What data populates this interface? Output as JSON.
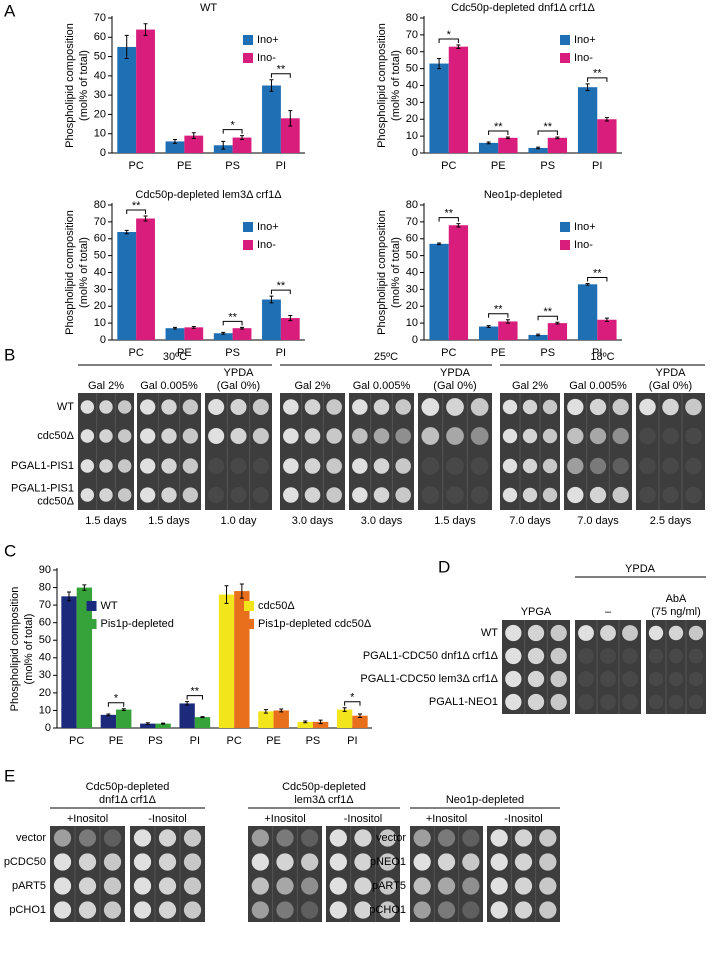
{
  "figure": {
    "panel_labels": [
      "A",
      "B",
      "C",
      "D",
      "E"
    ]
  },
  "chart_data": [
    {
      "type": "bar",
      "title": "WT",
      "ylabel": [
        "Phospholipid composition",
        "(mol% of total)"
      ],
      "categories": [
        "PC",
        "PE",
        "PS",
        "PI"
      ],
      "series": [
        {
          "name": "Ino+",
          "color": "#1f6fb4",
          "values": [
            55,
            6,
            4,
            35
          ],
          "errors": [
            6,
            1,
            2,
            3
          ]
        },
        {
          "name": "Ino-",
          "color": "#d81d7c",
          "values": [
            64,
            9,
            8,
            18
          ],
          "errors": [
            3,
            1.5,
            1,
            4
          ]
        }
      ],
      "significance": [
        null,
        null,
        "*",
        "**"
      ],
      "ylim": [
        0,
        70
      ],
      "yticks": [
        0,
        10,
        20,
        30,
        40,
        50,
        60,
        70
      ],
      "legend": "upper right"
    },
    {
      "type": "bar",
      "title": "Cdc50p-depleted dnf1Δ crf1Δ",
      "ylabel": [
        "Phospholipid composition",
        "(mol% of total)"
      ],
      "categories": [
        "PC",
        "PE",
        "PS",
        "PI"
      ],
      "series": [
        {
          "name": "Ino+",
          "color": "#1f6fb4",
          "values": [
            53,
            6,
            3,
            39
          ],
          "errors": [
            3,
            0.5,
            0.5,
            2
          ]
        },
        {
          "name": "Ino-",
          "color": "#d81d7c",
          "values": [
            63,
            9,
            9,
            20
          ],
          "errors": [
            1,
            0.5,
            0.5,
            1
          ]
        }
      ],
      "significance": [
        "*",
        "**",
        "**",
        "**"
      ],
      "ylim": [
        0,
        80
      ],
      "yticks": [
        0,
        10,
        20,
        30,
        40,
        50,
        60,
        70,
        80
      ],
      "legend": "upper right"
    },
    {
      "type": "bar",
      "title": "Cdc50p-depleted lem3Δ crf1Δ",
      "ylabel": [
        "Phospholipid composition",
        "(mol% of total)"
      ],
      "categories": [
        "PC",
        "PE",
        "PS",
        "PI"
      ],
      "series": [
        {
          "name": "Ino+",
          "color": "#1f6fb4",
          "values": [
            64,
            7,
            4,
            24
          ],
          "errors": [
            1,
            0.5,
            0.5,
            2
          ]
        },
        {
          "name": "Ino-",
          "color": "#d81d7c",
          "values": [
            72,
            7.5,
            7,
            13
          ],
          "errors": [
            1.5,
            0.5,
            0.5,
            1.5
          ]
        }
      ],
      "significance": [
        "**",
        null,
        "**",
        "**"
      ],
      "ylim": [
        0,
        80
      ],
      "yticks": [
        0,
        10,
        20,
        30,
        40,
        50,
        60,
        70,
        80
      ],
      "legend": "upper right"
    },
    {
      "type": "bar",
      "title": "Neo1p-depleted",
      "ylabel": [
        "Phospholipid composition",
        "(mol% of total)"
      ],
      "categories": [
        "PC",
        "PE",
        "PS",
        "PI"
      ],
      "series": [
        {
          "name": "Ino+",
          "color": "#1f6fb4",
          "values": [
            57,
            8,
            3,
            33
          ],
          "errors": [
            0.5,
            0.5,
            0.5,
            0.5
          ]
        },
        {
          "name": "Ino-",
          "color": "#d81d7c",
          "values": [
            68,
            11,
            10,
            12
          ],
          "errors": [
            1,
            1,
            0.5,
            1
          ]
        }
      ],
      "significance": [
        "**",
        "**",
        "**",
        "**"
      ],
      "ylim": [
        0,
        80
      ],
      "yticks": [
        0,
        10,
        20,
        30,
        40,
        50,
        60,
        70,
        80
      ],
      "legend": "upper right"
    },
    {
      "type": "bar",
      "ylabel": [
        "Phospholipid composition",
        "(mol% of total)"
      ],
      "categories": [
        "PC",
        "PE",
        "PS",
        "PI",
        "PC",
        "PE",
        "PS",
        "PI"
      ],
      "series": [
        {
          "name": "WT",
          "color": "#1c2a7c",
          "values": [
            75,
            7.5,
            2.5,
            14,
            null,
            null,
            null,
            null
          ],
          "errors": [
            2.5,
            0.5,
            0.5,
            1,
            null,
            null,
            null,
            null
          ]
        },
        {
          "name": "Pis1p-depleted",
          "color": "#35a33a",
          "values": [
            80,
            10.5,
            2.5,
            6.2,
            null,
            null,
            null,
            null
          ],
          "errors": [
            1.5,
            0.5,
            0.3,
            0.3,
            null,
            null,
            null,
            null
          ]
        },
        {
          "name": "cdc50Δ",
          "color": "#f2e51c",
          "values": [
            null,
            null,
            null,
            null,
            76,
            9.5,
            3.5,
            10.5
          ],
          "errors": [
            null,
            null,
            null,
            null,
            5,
            1,
            0.5,
            1
          ]
        },
        {
          "name": "Pis1p-depleted cdc50Δ",
          "color": "#e8701c",
          "values": [
            null,
            null,
            null,
            null,
            78,
            10,
            3.5,
            7
          ],
          "errors": [
            null,
            null,
            null,
            null,
            4,
            0.8,
            1,
            1
          ]
        }
      ],
      "significance": [
        null,
        "*",
        null,
        "**",
        null,
        null,
        null,
        "*"
      ],
      "ylim": [
        0,
        90
      ],
      "yticks": [
        0,
        10,
        20,
        30,
        40,
        50,
        60,
        70,
        80,
        90
      ],
      "legend": "upper left"
    }
  ],
  "panel_b": {
    "temperatures": [
      {
        "label": "30ºC",
        "media": [
          [
            "Gal 2%"
          ],
          [
            "Gal 0.005%"
          ],
          [
            "YPDA",
            "(Gal 0%)"
          ]
        ],
        "times": [
          "1.5 days",
          "1.5 days",
          "1.0 day"
        ]
      },
      {
        "label": "25ºC",
        "media": [
          [
            "Gal 2%"
          ],
          [
            "Gal 0.005%"
          ],
          [
            "YPDA",
            "(Gal 0%)"
          ]
        ],
        "times": [
          "3.0 days",
          "3.0 days",
          "1.5 days"
        ]
      },
      {
        "label": "18ºC",
        "media": [
          [
            "Gal 2%"
          ],
          [
            "Gal 0.005%"
          ],
          [
            "YPDA",
            "(Gal 0%)"
          ]
        ],
        "times": [
          "7.0 days",
          "7.0 days",
          "2.5 days"
        ]
      }
    ],
    "strains": [
      [
        "WT"
      ],
      [
        "cdc50Δ"
      ],
      [
        "PGAL1-PIS1"
      ],
      [
        "PGAL1-PIS1",
        "cdc50Δ"
      ]
    ]
  },
  "panel_d": {
    "header": "YPDA",
    "media": [
      [
        "YPGA"
      ],
      [
        "–"
      ],
      [
        "AbA",
        "(75 ng/ml)"
      ]
    ],
    "strains": [
      "WT",
      "PGAL1-CDC50 dnf1Δ crf1Δ",
      "PGAL1-CDC50 lem3Δ crf1Δ",
      "PGAL1-NEO1"
    ]
  },
  "panel_e": {
    "blocks": [
      {
        "title": [
          "Cdc50p-depleted",
          "dnf1Δ crf1Δ"
        ],
        "conditions": [
          "+Inositol",
          "-Inositol"
        ],
        "plasmids": [
          "vector",
          "pCDC50",
          "pART5",
          "pCHO1"
        ]
      },
      {
        "title": [
          "Cdc50p-depleted",
          "lem3Δ crf1Δ"
        ],
        "conditions": [
          "+Inositol",
          "-Inositol"
        ]
      },
      {
        "title": [
          "Neo1p-depleted"
        ],
        "conditions": [
          "+Inositol",
          "-Inositol"
        ],
        "plasmids": [
          "vector",
          "pNEO1",
          "pART5",
          "pCHO1"
        ]
      }
    ]
  }
}
